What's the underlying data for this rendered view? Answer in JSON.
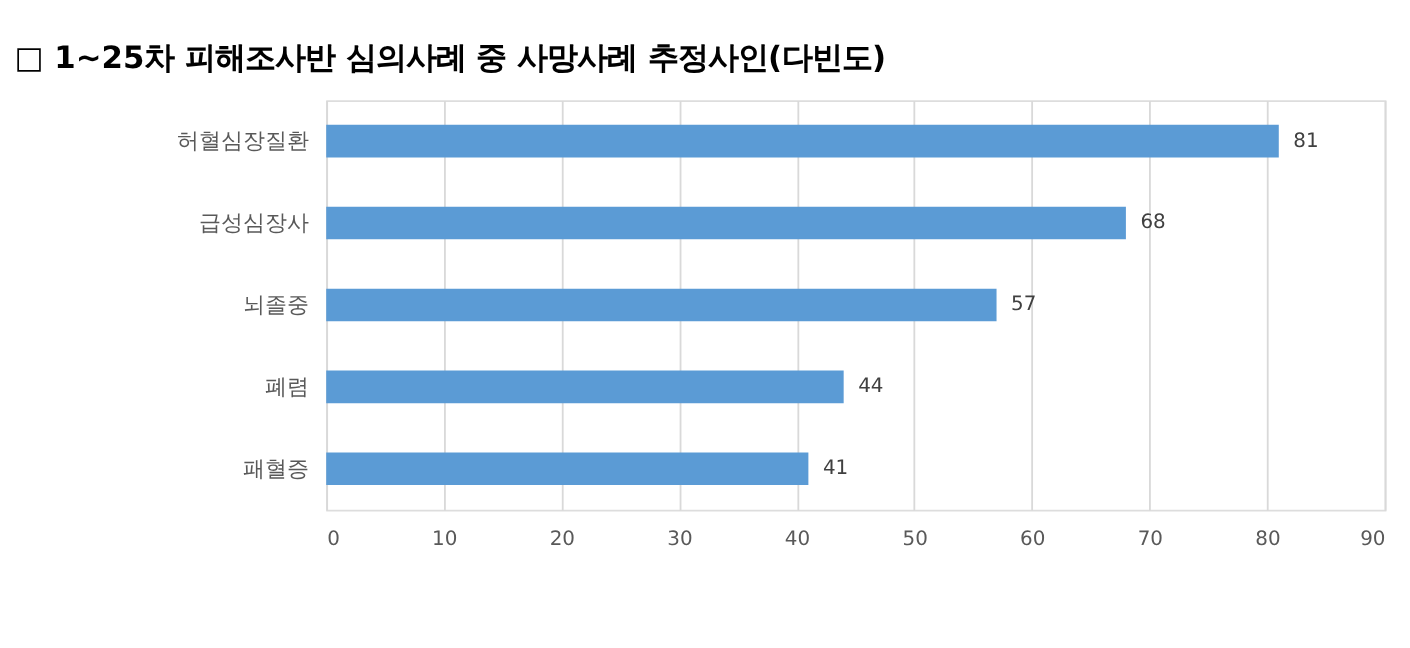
{
  "chart_data": {
    "type": "bar",
    "orientation": "horizontal",
    "title": "□ 1~25차 피해조사반 심의사례 중 사망사례 추정사인(다빈도)",
    "categories": [
      "허혈심장질환",
      "급성심장사",
      "뇌졸중",
      "폐렴",
      "패혈증"
    ],
    "values": [
      81,
      68,
      57,
      44,
      41
    ],
    "color": "#5b9bd5",
    "xlim": [
      0,
      90
    ],
    "xticks": [
      0,
      10,
      20,
      30,
      40,
      50,
      60,
      70,
      80,
      90
    ],
    "grid": "x",
    "data_labels": true
  }
}
